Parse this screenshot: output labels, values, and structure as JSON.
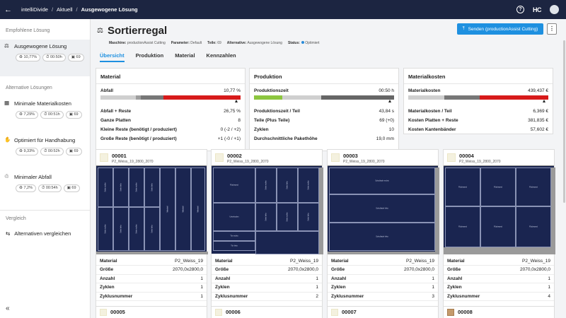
{
  "app": {
    "name": "intelliDivide",
    "crumbs": [
      "Aktuell",
      "Ausgewogene Lösung"
    ],
    "logo": "HC"
  },
  "sidebar": {
    "recommended_title": "Empfohlene Lösung",
    "alternatives_title": "Alternative Lösungen",
    "compare_title": "Vergleich",
    "compare_label": "Alternativen vergleichen",
    "solutions": [
      {
        "label": "Ausgewogene Lösung",
        "waste": "10,77%",
        "time": "00:50h",
        "count": "69",
        "icon": "scale-icon",
        "active": true
      },
      {
        "label": "Minimale Materialkosten",
        "waste": "7,29%",
        "time": "00:51h",
        "count": "69",
        "icon": "material-cost-icon"
      },
      {
        "label": "Optimiert für Handhabung",
        "waste": "9,33%",
        "time": "00:52h",
        "count": "69",
        "icon": "handling-icon"
      },
      {
        "label": "Minimaler Abfall",
        "waste": "7,2%",
        "time": "00:54h",
        "count": "69",
        "icon": "waste-icon"
      }
    ]
  },
  "header": {
    "title": "Sortierregal",
    "meta": [
      {
        "k": "Maschine:",
        "v": "productionAssist Cutting"
      },
      {
        "k": "Parameter:",
        "v": "Default"
      },
      {
        "k": "Teile:",
        "v": "69"
      },
      {
        "k": "Alternative:",
        "v": "Ausgewogene Lösung"
      },
      {
        "k": "Status:",
        "v": "Optimiert"
      }
    ],
    "send_label": "Senden (productionAssist Cutting)",
    "more_label": "⋮"
  },
  "tabs": [
    "Übersicht",
    "Produktion",
    "Material",
    "Kennzahlen"
  ],
  "material": {
    "title": "Material",
    "top_label": "Abfall",
    "top_value": "10,77 %",
    "rows": [
      {
        "l": "Abfall + Reste",
        "v": "26,75 %"
      },
      {
        "l": "Ganze Platten",
        "v": "8"
      },
      {
        "l": "Kleine Reste (benötigt / produziert)",
        "v": "0 (-2 / +2)"
      },
      {
        "l": "Große Reste (benötigt / produziert)",
        "v": "+1 (-0 / +1)"
      }
    ]
  },
  "production": {
    "title": "Produktion",
    "top_label": "Produktionszeit",
    "top_value": "00:50 h",
    "rows": [
      {
        "l": "Produktionszeit / Teil",
        "v": "43,84 s"
      },
      {
        "l": "Teile (Plus Teile)",
        "v": "69 (+0)"
      },
      {
        "l": "Zyklen",
        "v": "10"
      },
      {
        "l": "Durchschnittliche Pakethöhe",
        "v": "19,0 mm"
      }
    ]
  },
  "costs": {
    "title": "Materialkosten",
    "top_label": "Materialkosten",
    "top_value": "439,437 €",
    "rows": [
      {
        "l": "Materialkosten / Teil",
        "v": "6,369 €"
      },
      {
        "l": "Kosten Platten + Reste",
        "v": "381,835 €"
      },
      {
        "l": "Kosten Kantenbänder",
        "v": "57,602 €"
      }
    ]
  },
  "sheet_labels": {
    "material": "Material",
    "size": "Größe",
    "count": "Anzahl",
    "cycles": "Zyklen",
    "cycle_no": "Zyklusnummer"
  },
  "sheets": [
    {
      "num": "00001",
      "mat": "P2_Weiss_19_2800_2070",
      "material": "P2_Weiss_19",
      "size": "2070,0x2800,0",
      "count": "1",
      "cycles": "1",
      "cycle_no": "1"
    },
    {
      "num": "00002",
      "mat": "P2_Weiss_19_2800_2070",
      "material": "P2_Weiss_19",
      "size": "2070,0x2800,0",
      "count": "1",
      "cycles": "1",
      "cycle_no": "2"
    },
    {
      "num": "00003",
      "mat": "P2_Weiss_19_2800_2070",
      "material": "P2_Weiss_19",
      "size": "2070,0x2800,0",
      "count": "1",
      "cycles": "1",
      "cycle_no": "3"
    },
    {
      "num": "00004",
      "mat": "P2_Weiss_19_2800_2070",
      "material": "P2_Weiss_19",
      "size": "2070,0x2800,0",
      "count": "1",
      "cycles": "1",
      "cycle_no": "4"
    }
  ],
  "sheets_next": [
    "00005",
    "00006",
    "00007",
    "00008"
  ],
  "piece_labels": [
    "Seite rechts",
    "Seite links",
    "Rückwand",
    "Unterboden",
    "Schublade rechts",
    "Schublade links",
    "Tür rechts",
    "Tür links",
    "Mittelteil"
  ]
}
